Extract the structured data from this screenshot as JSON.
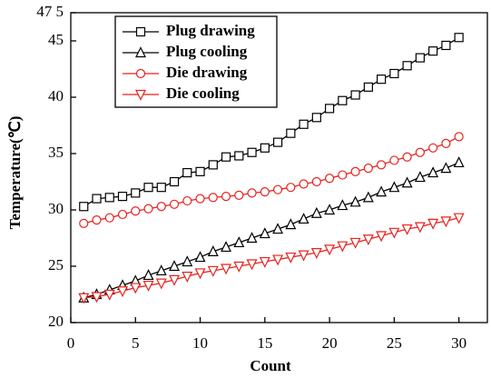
{
  "chart_data": {
    "type": "line",
    "x_label": "Count",
    "y_label": "Temperature(℃)",
    "x": [
      1,
      2,
      3,
      4,
      5,
      6,
      7,
      8,
      9,
      10,
      11,
      12,
      13,
      14,
      15,
      16,
      17,
      18,
      19,
      20,
      21,
      22,
      23,
      24,
      25,
      26,
      27,
      28,
      29,
      30
    ],
    "series": [
      {
        "name": "Plug drawing",
        "color": "#000000",
        "marker": "square",
        "values": [
          30.3,
          31.0,
          31.1,
          31.2,
          31.5,
          32.0,
          32.0,
          32.5,
          33.3,
          33.4,
          34.0,
          34.7,
          34.8,
          35.1,
          35.5,
          36.0,
          36.8,
          37.6,
          38.2,
          39.0,
          39.7,
          40.2,
          40.9,
          41.6,
          42.1,
          42.8,
          43.5,
          44.1,
          44.6,
          45.3
        ]
      },
      {
        "name": "Plug cooling",
        "color": "#000000",
        "marker": "triangle-up",
        "values": [
          22.2,
          22.5,
          22.9,
          23.3,
          23.7,
          24.2,
          24.6,
          25.0,
          25.4,
          25.8,
          26.3,
          26.7,
          27.1,
          27.5,
          27.9,
          28.3,
          28.7,
          29.2,
          29.7,
          30.0,
          30.4,
          30.7,
          31.1,
          31.6,
          32.0,
          32.4,
          32.9,
          33.3,
          33.7,
          34.2
        ]
      },
      {
        "name": "Die drawing",
        "color": "#e8221e",
        "marker": "circle",
        "values": [
          28.8,
          29.1,
          29.3,
          29.6,
          29.9,
          30.1,
          30.3,
          30.5,
          30.8,
          31.0,
          31.1,
          31.2,
          31.3,
          31.5,
          31.6,
          31.8,
          32.0,
          32.3,
          32.5,
          32.8,
          33.1,
          33.4,
          33.7,
          34.0,
          34.4,
          34.7,
          35.1,
          35.5,
          35.9,
          36.5
        ]
      },
      {
        "name": "Die cooling",
        "color": "#e8221e",
        "marker": "triangle-down",
        "values": [
          22.2,
          22.3,
          22.5,
          22.8,
          23.1,
          23.3,
          23.5,
          23.8,
          24.1,
          24.4,
          24.6,
          24.8,
          25.0,
          25.2,
          25.4,
          25.6,
          25.8,
          26.0,
          26.2,
          26.5,
          26.8,
          27.1,
          27.4,
          27.7,
          28.0,
          28.3,
          28.5,
          28.8,
          29.0,
          29.3
        ]
      }
    ],
    "xlim": [
      0,
      32.2
    ],
    "xticks": [
      0,
      5,
      10,
      15,
      20,
      25,
      30
    ],
    "ylim": [
      20,
      47.5
    ],
    "yticks": [
      20,
      25,
      30,
      35,
      40,
      45,
      {
        "value": 47.5,
        "label": "47 5"
      }
    ]
  }
}
